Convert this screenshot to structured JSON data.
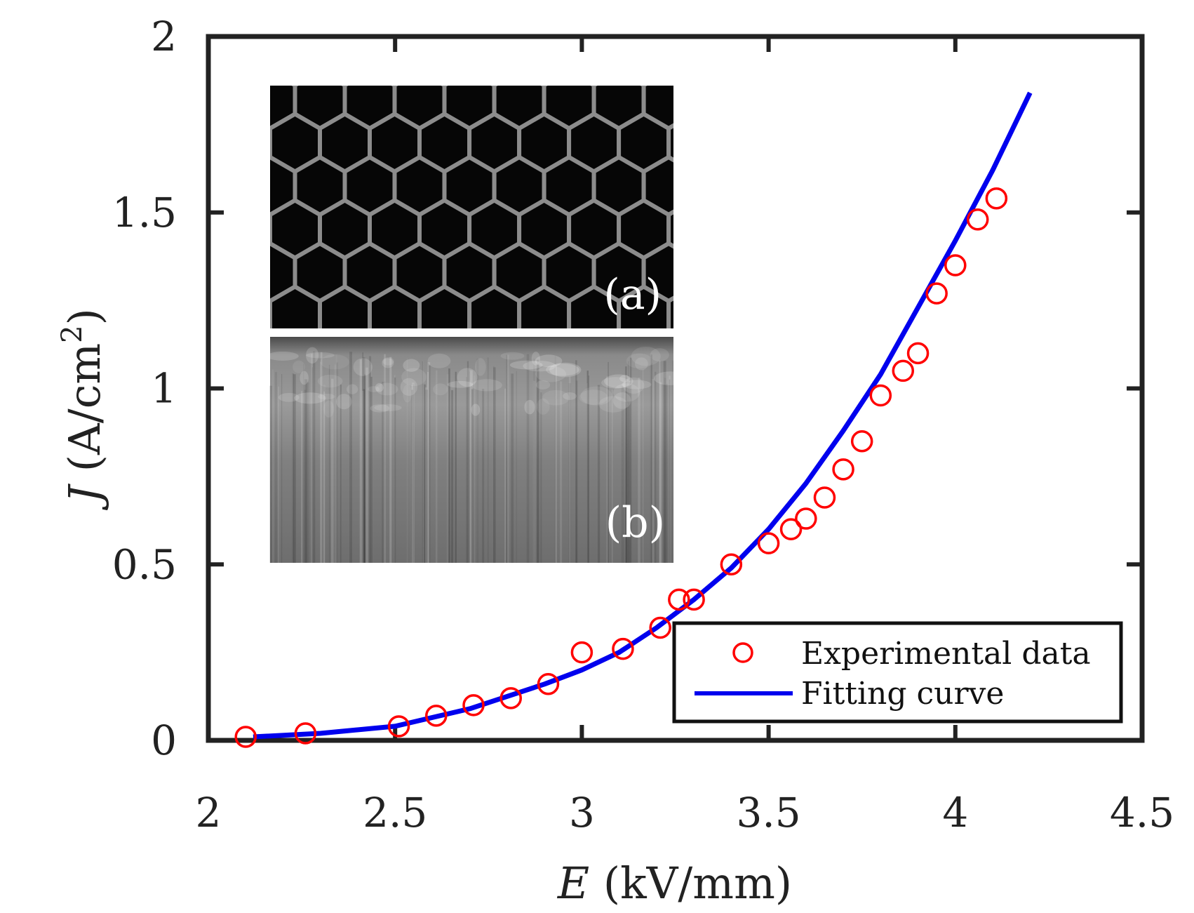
{
  "chart_data": {
    "type": "scatter",
    "xlabel": {
      "symbol": "E",
      "unit": " (kV/mm)"
    },
    "ylabel": {
      "symbol": "J",
      "unit_prefix": " (A/cm",
      "unit_superscript": "2",
      "unit_suffix": ")"
    },
    "xlim": [
      2,
      4.5
    ],
    "ylim": [
      0,
      2
    ],
    "xticks": [
      2,
      2.5,
      3,
      3.5,
      4,
      4.5
    ],
    "xtick_labels": [
      "2",
      "2.5",
      "3",
      "3.5",
      "4",
      "4.5"
    ],
    "yticks": [
      0,
      0.5,
      1,
      1.5,
      2
    ],
    "ytick_labels": [
      "0",
      "0.5",
      "1",
      "1.5",
      "2"
    ],
    "grid": false,
    "legend_position": "bottom-right",
    "series": [
      {
        "name": "Experimental data",
        "kind": "marker",
        "marker": "open-circle",
        "color": "#ff0000",
        "x": [
          2.1,
          2.26,
          2.51,
          2.61,
          2.71,
          2.81,
          2.91,
          3.0,
          3.11,
          3.21,
          3.26,
          3.3,
          3.4,
          3.5,
          3.56,
          3.6,
          3.65,
          3.7,
          3.75,
          3.8,
          3.86,
          3.9,
          3.95,
          4.0,
          4.06,
          4.11
        ],
        "y": [
          0.01,
          0.02,
          0.04,
          0.07,
          0.1,
          0.12,
          0.16,
          0.25,
          0.26,
          0.32,
          0.4,
          0.4,
          0.5,
          0.56,
          0.6,
          0.63,
          0.69,
          0.77,
          0.85,
          0.98,
          1.05,
          1.1,
          1.27,
          1.35,
          1.48,
          1.54
        ]
      },
      {
        "name": "Fitting curve",
        "kind": "line",
        "color": "#0000ee",
        "x": [
          2.12,
          2.3,
          2.5,
          2.7,
          2.9,
          3.0,
          3.1,
          3.2,
          3.3,
          3.4,
          3.5,
          3.6,
          3.7,
          3.8,
          3.9,
          4.0,
          4.1,
          4.2
        ],
        "y": [
          0.01,
          0.02,
          0.04,
          0.09,
          0.16,
          0.2,
          0.25,
          0.32,
          0.4,
          0.49,
          0.6,
          0.73,
          0.88,
          1.04,
          1.23,
          1.42,
          1.62,
          1.84
        ]
      }
    ],
    "insets": [
      {
        "label": "(a)",
        "description_name": "honeycomb-inset"
      },
      {
        "label": "(b)",
        "description_name": "nanotube-forest-inset"
      }
    ]
  }
}
